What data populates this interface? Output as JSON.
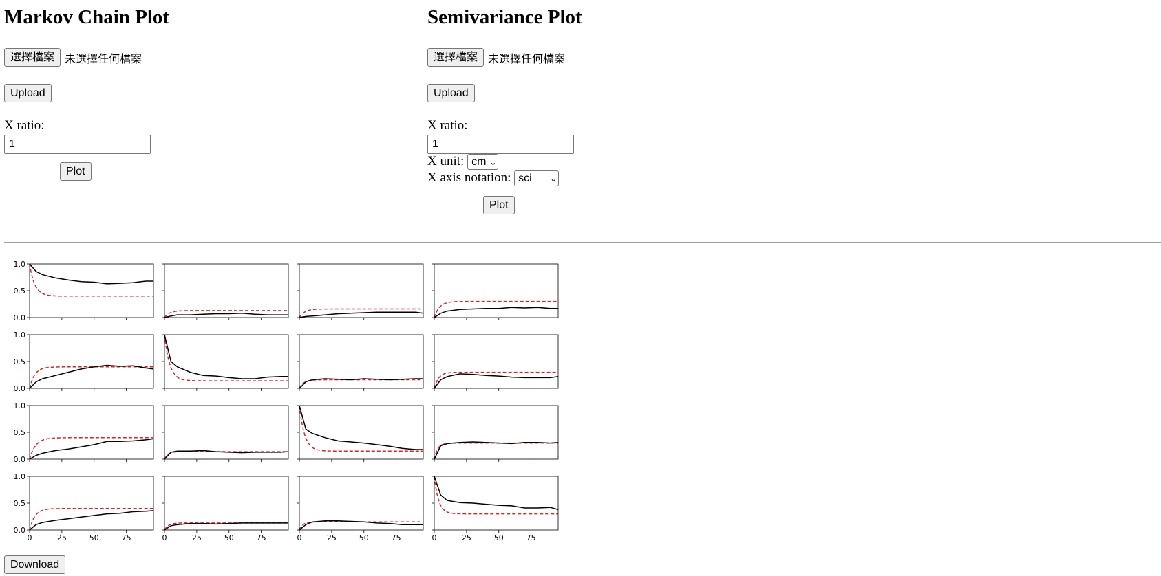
{
  "markov": {
    "title": "Markov Chain Plot",
    "file_button": "選擇檔案",
    "file_status": "未選擇任何檔案",
    "upload_button": "Upload",
    "x_ratio_label": "X ratio:",
    "x_ratio_value": "1",
    "plot_button": "Plot"
  },
  "semivariance": {
    "title": "Semivariance Plot",
    "file_button": "選擇檔案",
    "file_status": "未選擇任何檔案",
    "upload_button": "Upload",
    "x_ratio_label": "X ratio:",
    "x_ratio_value": "1",
    "x_unit_label": "X unit:",
    "x_unit_value": "cm",
    "x_axis_notation_label": "X axis notation:",
    "x_axis_notation_value": "sci",
    "plot_button": "Plot"
  },
  "download_button": "Download",
  "chart_data": {
    "type": "line",
    "layout": "4x4 grid of small multiples",
    "xlim": [
      0,
      96
    ],
    "ylim": [
      0,
      1
    ],
    "xticks": [
      "0",
      "25",
      "50",
      "75"
    ],
    "yticks": [
      "0.0",
      "0.5",
      "1.0"
    ],
    "colors": {
      "observed": "#000000",
      "model": "#d62728"
    },
    "panels": [
      {
        "observed": [
          [
            0,
            1.0
          ],
          [
            5,
            0.86
          ],
          [
            10,
            0.8
          ],
          [
            20,
            0.74
          ],
          [
            30,
            0.7
          ],
          [
            40,
            0.67
          ],
          [
            50,
            0.66
          ],
          [
            60,
            0.63
          ],
          [
            70,
            0.64
          ],
          [
            80,
            0.65
          ],
          [
            90,
            0.68
          ],
          [
            96,
            0.68
          ]
        ],
        "model": {
          "start": 1.0,
          "sill": 0.4,
          "range": 12
        }
      },
      {
        "observed": [
          [
            0,
            0.0
          ],
          [
            5,
            0.03
          ],
          [
            10,
            0.05
          ],
          [
            20,
            0.05
          ],
          [
            30,
            0.06
          ],
          [
            40,
            0.07
          ],
          [
            50,
            0.07
          ],
          [
            60,
            0.08
          ],
          [
            70,
            0.06
          ],
          [
            80,
            0.05
          ],
          [
            90,
            0.05
          ],
          [
            96,
            0.05
          ]
        ],
        "model": {
          "start": 0.0,
          "sill": 0.13,
          "range": 12
        }
      },
      {
        "observed": [
          [
            0,
            0.0
          ],
          [
            5,
            0.02
          ],
          [
            10,
            0.03
          ],
          [
            20,
            0.05
          ],
          [
            30,
            0.07
          ],
          [
            40,
            0.08
          ],
          [
            50,
            0.09
          ],
          [
            60,
            0.1
          ],
          [
            70,
            0.1
          ],
          [
            80,
            0.1
          ],
          [
            90,
            0.1
          ],
          [
            96,
            0.08
          ]
        ],
        "model": {
          "start": 0.0,
          "sill": 0.16,
          "range": 12
        }
      },
      {
        "observed": [
          [
            0,
            0.0
          ],
          [
            5,
            0.08
          ],
          [
            10,
            0.12
          ],
          [
            20,
            0.15
          ],
          [
            30,
            0.16
          ],
          [
            40,
            0.17
          ],
          [
            50,
            0.17
          ],
          [
            60,
            0.19
          ],
          [
            70,
            0.18
          ],
          [
            80,
            0.19
          ],
          [
            90,
            0.17
          ],
          [
            96,
            0.17
          ]
        ],
        "model": {
          "start": 0.0,
          "sill": 0.3,
          "range": 12
        }
      },
      {
        "observed": [
          [
            0,
            0.0
          ],
          [
            5,
            0.12
          ],
          [
            10,
            0.18
          ],
          [
            20,
            0.24
          ],
          [
            30,
            0.3
          ],
          [
            40,
            0.36
          ],
          [
            50,
            0.4
          ],
          [
            60,
            0.43
          ],
          [
            70,
            0.41
          ],
          [
            80,
            0.42
          ],
          [
            90,
            0.38
          ],
          [
            96,
            0.36
          ]
        ],
        "model": {
          "start": 0.0,
          "sill": 0.4,
          "range": 12
        }
      },
      {
        "observed": [
          [
            0,
            1.0
          ],
          [
            5,
            0.5
          ],
          [
            10,
            0.4
          ],
          [
            20,
            0.3
          ],
          [
            30,
            0.24
          ],
          [
            40,
            0.23
          ],
          [
            50,
            0.2
          ],
          [
            60,
            0.18
          ],
          [
            70,
            0.18
          ],
          [
            80,
            0.21
          ],
          [
            90,
            0.22
          ],
          [
            96,
            0.22
          ]
        ],
        "model": {
          "start": 1.0,
          "sill": 0.14,
          "range": 12
        }
      },
      {
        "observed": [
          [
            0,
            0.0
          ],
          [
            5,
            0.12
          ],
          [
            10,
            0.16
          ],
          [
            20,
            0.18
          ],
          [
            30,
            0.17
          ],
          [
            40,
            0.16
          ],
          [
            50,
            0.18
          ],
          [
            60,
            0.17
          ],
          [
            70,
            0.16
          ],
          [
            80,
            0.17
          ],
          [
            90,
            0.18
          ],
          [
            96,
            0.18
          ]
        ],
        "model": {
          "start": 0.0,
          "sill": 0.16,
          "range": 10
        }
      },
      {
        "observed": [
          [
            0,
            0.0
          ],
          [
            5,
            0.16
          ],
          [
            10,
            0.22
          ],
          [
            20,
            0.27
          ],
          [
            30,
            0.26
          ],
          [
            40,
            0.24
          ],
          [
            50,
            0.23
          ],
          [
            60,
            0.21
          ],
          [
            70,
            0.2
          ],
          [
            80,
            0.2
          ],
          [
            90,
            0.2
          ],
          [
            96,
            0.22
          ]
        ],
        "model": {
          "start": 0.0,
          "sill": 0.3,
          "range": 10
        }
      },
      {
        "observed": [
          [
            0,
            0.0
          ],
          [
            5,
            0.07
          ],
          [
            10,
            0.11
          ],
          [
            20,
            0.16
          ],
          [
            30,
            0.19
          ],
          [
            40,
            0.23
          ],
          [
            50,
            0.27
          ],
          [
            60,
            0.33
          ],
          [
            70,
            0.33
          ],
          [
            80,
            0.34
          ],
          [
            90,
            0.36
          ],
          [
            96,
            0.38
          ]
        ],
        "model": {
          "start": 0.0,
          "sill": 0.4,
          "range": 14
        }
      },
      {
        "observed": [
          [
            0,
            0.0
          ],
          [
            5,
            0.13
          ],
          [
            10,
            0.15
          ],
          [
            20,
            0.15
          ],
          [
            30,
            0.16
          ],
          [
            40,
            0.14
          ],
          [
            50,
            0.13
          ],
          [
            60,
            0.12
          ],
          [
            70,
            0.13
          ],
          [
            80,
            0.13
          ],
          [
            90,
            0.13
          ],
          [
            96,
            0.14
          ]
        ],
        "model": {
          "start": 0.0,
          "sill": 0.14,
          "range": 8
        }
      },
      {
        "observed": [
          [
            0,
            1.0
          ],
          [
            5,
            0.56
          ],
          [
            10,
            0.48
          ],
          [
            20,
            0.4
          ],
          [
            30,
            0.34
          ],
          [
            40,
            0.32
          ],
          [
            50,
            0.3
          ],
          [
            60,
            0.27
          ],
          [
            70,
            0.24
          ],
          [
            80,
            0.2
          ],
          [
            90,
            0.18
          ],
          [
            96,
            0.18
          ]
        ],
        "model": {
          "start": 1.0,
          "sill": 0.15,
          "range": 12
        }
      },
      {
        "observed": [
          [
            0,
            0.0
          ],
          [
            5,
            0.25
          ],
          [
            10,
            0.29
          ],
          [
            20,
            0.31
          ],
          [
            30,
            0.32
          ],
          [
            40,
            0.31
          ],
          [
            50,
            0.3
          ],
          [
            60,
            0.29
          ],
          [
            70,
            0.31
          ],
          [
            80,
            0.31
          ],
          [
            90,
            0.3
          ],
          [
            96,
            0.31
          ]
        ],
        "model": {
          "start": 0.0,
          "sill": 0.3,
          "range": 8
        }
      },
      {
        "observed": [
          [
            0,
            0.0
          ],
          [
            5,
            0.1
          ],
          [
            10,
            0.14
          ],
          [
            20,
            0.18
          ],
          [
            30,
            0.21
          ],
          [
            40,
            0.24
          ],
          [
            50,
            0.27
          ],
          [
            60,
            0.3
          ],
          [
            70,
            0.31
          ],
          [
            80,
            0.34
          ],
          [
            90,
            0.35
          ],
          [
            96,
            0.36
          ]
        ],
        "model": {
          "start": 0.0,
          "sill": 0.4,
          "range": 12
        }
      },
      {
        "observed": [
          [
            0,
            0.0
          ],
          [
            5,
            0.08
          ],
          [
            10,
            0.1
          ],
          [
            20,
            0.12
          ],
          [
            30,
            0.12
          ],
          [
            40,
            0.11
          ],
          [
            50,
            0.12
          ],
          [
            60,
            0.13
          ],
          [
            70,
            0.13
          ],
          [
            80,
            0.13
          ],
          [
            90,
            0.13
          ],
          [
            96,
            0.13
          ]
        ],
        "model": {
          "start": 0.0,
          "sill": 0.13,
          "range": 9
        }
      },
      {
        "observed": [
          [
            0,
            0.0
          ],
          [
            5,
            0.1
          ],
          [
            10,
            0.15
          ],
          [
            20,
            0.17
          ],
          [
            30,
            0.17
          ],
          [
            40,
            0.16
          ],
          [
            50,
            0.15
          ],
          [
            60,
            0.13
          ],
          [
            70,
            0.12
          ],
          [
            80,
            0.1
          ],
          [
            90,
            0.1
          ],
          [
            96,
            0.1
          ]
        ],
        "model": {
          "start": 0.0,
          "sill": 0.15,
          "range": 8
        }
      },
      {
        "observed": [
          [
            0,
            1.0
          ],
          [
            5,
            0.65
          ],
          [
            10,
            0.55
          ],
          [
            20,
            0.51
          ],
          [
            30,
            0.5
          ],
          [
            40,
            0.48
          ],
          [
            50,
            0.46
          ],
          [
            60,
            0.45
          ],
          [
            70,
            0.41
          ],
          [
            80,
            0.41
          ],
          [
            90,
            0.42
          ],
          [
            96,
            0.38
          ]
        ],
        "model": {
          "start": 1.0,
          "sill": 0.3,
          "range": 10
        }
      }
    ]
  }
}
